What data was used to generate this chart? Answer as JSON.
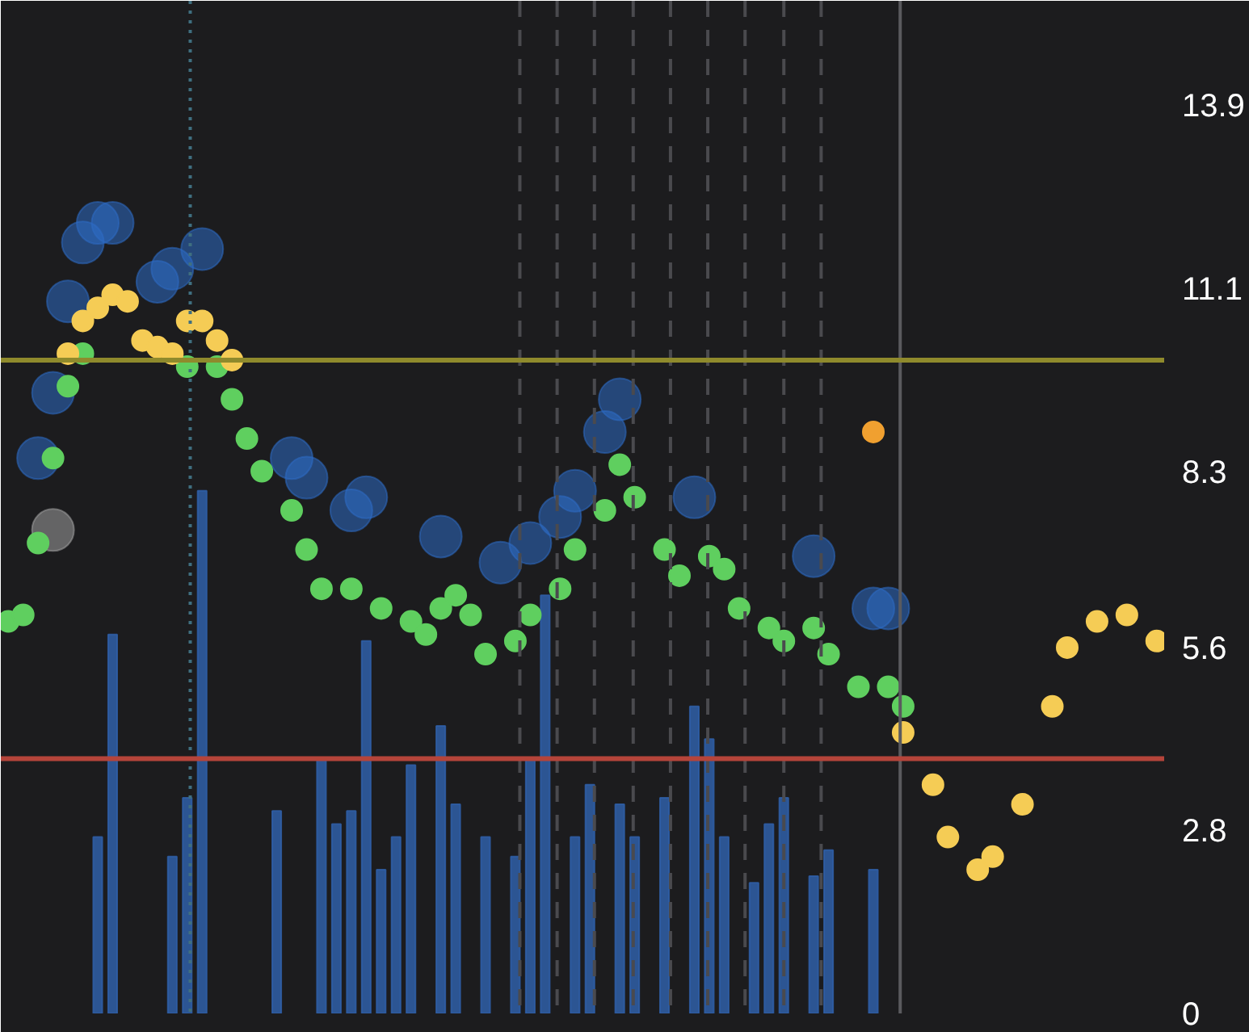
{
  "chart_data": {
    "type": "scatter",
    "ylim": [
      0,
      15.5
    ],
    "yticks": [
      0,
      2.8,
      5.6,
      8.3,
      11.1,
      13.9
    ],
    "tick_labels": "y",
    "grid": "x",
    "marker": "circle",
    "categories": [
      null,
      null,
      null,
      null,
      null,
      null,
      null,
      null,
      null,
      null,
      null,
      null,
      null,
      null,
      null,
      null,
      null,
      null,
      null,
      null,
      null,
      null,
      null,
      null,
      null,
      null,
      null,
      null,
      null,
      null,
      null,
      null,
      null,
      null,
      null,
      null,
      null,
      null,
      null,
      null,
      null,
      null,
      null,
      null,
      null,
      null,
      null,
      null,
      null,
      null,
      null,
      null,
      null,
      null,
      null,
      null,
      null,
      null,
      null,
      null,
      null,
      null,
      null,
      null,
      null,
      null,
      null,
      null,
      null,
      null,
      null,
      null,
      null,
      null,
      null,
      null,
      null,
      null
    ],
    "ref_lines": [
      {
        "axis": "y",
        "value": 10.0,
        "color": "#8f8a2c",
        "line_style": "solid"
      },
      {
        "axis": "y",
        "value": 3.9,
        "color": "#b5443a",
        "line_style": "solid"
      }
    ],
    "series": [
      {
        "type": "bar",
        "color": "#2f5fa8",
        "values": [
          null,
          null,
          null,
          null,
          null,
          null,
          2.7,
          5.8,
          null,
          null,
          null,
          2.4,
          3.3,
          8.0,
          null,
          null,
          null,
          null,
          3.1,
          null,
          null,
          3.9,
          2.9,
          3.1,
          5.7,
          2.2,
          2.7,
          3.8,
          null,
          4.4,
          3.2,
          null,
          2.7,
          null,
          2.4,
          3.9,
          6.4,
          null,
          2.7,
          3.5,
          null,
          3.2,
          2.7,
          null,
          3.3,
          null,
          4.7,
          4.2,
          2.7,
          null,
          2.0,
          2.9,
          3.3,
          null,
          2.1,
          2.5,
          null,
          null,
          2.2,
          null,
          null,
          null,
          null,
          null,
          null,
          null,
          null,
          null,
          null,
          null,
          null,
          null,
          null,
          null,
          null,
          null,
          null,
          null
        ]
      },
      {
        "type": "bubble",
        "color": "#2e6cc4",
        "values": [
          null,
          null,
          8.5,
          9.5,
          10.9,
          11.8,
          12.1,
          12.1,
          null,
          null,
          11.2,
          11.4,
          null,
          11.7,
          null,
          null,
          null,
          null,
          null,
          8.5,
          8.2,
          null,
          null,
          7.7,
          7.9,
          null,
          null,
          null,
          null,
          7.3,
          null,
          null,
          null,
          6.9,
          null,
          7.2,
          null,
          7.6,
          8.0,
          null,
          8.9,
          9.4,
          null,
          null,
          null,
          null,
          7.9,
          null,
          null,
          null,
          null,
          null,
          null,
          null,
          7.0,
          null,
          null,
          null,
          6.2,
          6.2,
          null,
          null,
          null,
          null,
          null,
          null,
          null,
          null,
          null,
          null,
          null,
          null,
          null,
          null,
          null,
          null,
          null,
          null
        ],
        "sizes": [
          null,
          null,
          1,
          1,
          1,
          1,
          1,
          1,
          null,
          null,
          1,
          1,
          null,
          1,
          null,
          null,
          null,
          null,
          null,
          1,
          1,
          null,
          null,
          1,
          1,
          null,
          null,
          null,
          null,
          1,
          null,
          null,
          null,
          1,
          null,
          1,
          null,
          1,
          1,
          null,
          1,
          1,
          null,
          null,
          null,
          null,
          1,
          null,
          null,
          null,
          null,
          null,
          null,
          null,
          1,
          null,
          null,
          null,
          1,
          1,
          null,
          null,
          null,
          null,
          null,
          null,
          null,
          null,
          null,
          null,
          null,
          null,
          null,
          null,
          null,
          null,
          null,
          null
        ]
      },
      {
        "type": "bubble",
        "color": "#a0a0a0",
        "values": [
          null,
          null,
          null,
          7.4,
          null,
          null,
          null,
          null,
          null,
          null,
          null,
          null,
          null,
          null,
          null,
          null,
          null,
          null,
          null,
          null,
          null,
          null,
          null,
          null,
          null,
          null,
          null,
          null,
          null,
          null,
          null,
          null,
          null,
          null,
          null,
          null,
          null,
          null,
          null,
          null,
          null,
          null,
          null,
          null,
          null,
          null,
          null,
          null,
          null,
          null,
          null,
          null,
          null,
          null,
          null,
          null,
          null,
          null,
          null,
          null,
          null,
          null,
          null,
          null,
          null,
          null,
          null,
          null,
          null,
          null,
          null,
          null,
          null,
          null,
          null,
          null,
          null,
          null
        ],
        "sizes": [
          null,
          null,
          null,
          1,
          null,
          null,
          null,
          null,
          null,
          null,
          null,
          null,
          null,
          null,
          null,
          null,
          null,
          null,
          null,
          null,
          null,
          null,
          null,
          null,
          null,
          null,
          null,
          null,
          null,
          null,
          null,
          null,
          null,
          null,
          null,
          null,
          null,
          null,
          null,
          null,
          null,
          null,
          null,
          null,
          null,
          null,
          null,
          null,
          null,
          null,
          null,
          null,
          null,
          null,
          null,
          null,
          null,
          null,
          null,
          null,
          null,
          null,
          null,
          null,
          null,
          null,
          null,
          null,
          null,
          null,
          null,
          null,
          null,
          null,
          null,
          null,
          null,
          null
        ]
      },
      {
        "color": "#f0a030",
        "values": [
          null,
          null,
          null,
          null,
          null,
          null,
          null,
          null,
          null,
          null,
          null,
          null,
          null,
          null,
          null,
          null,
          null,
          null,
          null,
          null,
          null,
          null,
          null,
          null,
          null,
          null,
          null,
          null,
          null,
          null,
          null,
          null,
          null,
          null,
          null,
          null,
          null,
          null,
          null,
          null,
          null,
          null,
          null,
          null,
          null,
          null,
          null,
          null,
          null,
          null,
          null,
          null,
          null,
          null,
          null,
          null,
          null,
          null,
          8.9,
          null,
          null,
          null,
          null,
          null,
          null,
          null,
          null,
          null,
          null,
          null,
          null,
          null,
          null,
          null,
          null,
          null,
          null,
          null
        ]
      },
      {
        "color": "#5fcf5f",
        "values": [
          6.0,
          6.1,
          7.2,
          8.5,
          9.6,
          10.1,
          null,
          null,
          null,
          null,
          null,
          null,
          9.9,
          null,
          9.9,
          9.4,
          8.8,
          8.3,
          null,
          7.7,
          7.1,
          6.5,
          null,
          6.5,
          null,
          6.2,
          null,
          6.0,
          5.8,
          6.2,
          6.4,
          6.1,
          5.5,
          null,
          5.7,
          6.1,
          null,
          6.5,
          7.1,
          null,
          7.7,
          8.4,
          7.9,
          null,
          7.1,
          6.7,
          null,
          7.0,
          6.8,
          6.2,
          null,
          5.9,
          5.7,
          null,
          5.9,
          5.5,
          null,
          5.0,
          null,
          5.0,
          4.7,
          null,
          null,
          null,
          null,
          null,
          null,
          null,
          null,
          null,
          null,
          null,
          null,
          null,
          null,
          null,
          null,
          null
        ]
      },
      {
        "color": "#f5cc55",
        "values": [
          null,
          null,
          null,
          null,
          10.1,
          10.6,
          10.8,
          11.0,
          10.9,
          10.3,
          10.2,
          10.1,
          10.6,
          10.6,
          10.3,
          10.0,
          null,
          null,
          null,
          null,
          null,
          null,
          null,
          null,
          null,
          null,
          null,
          null,
          null,
          null,
          null,
          null,
          null,
          null,
          null,
          null,
          null,
          null,
          null,
          null,
          null,
          null,
          null,
          null,
          null,
          null,
          null,
          null,
          null,
          null,
          null,
          null,
          null,
          null,
          null,
          null,
          null,
          null,
          null,
          null,
          4.3,
          null,
          3.5,
          2.7,
          null,
          2.2,
          2.4,
          null,
          3.2,
          null,
          4.7,
          5.6,
          null,
          6.0,
          null,
          6.1,
          null,
          5.7
        ]
      }
    ]
  }
}
